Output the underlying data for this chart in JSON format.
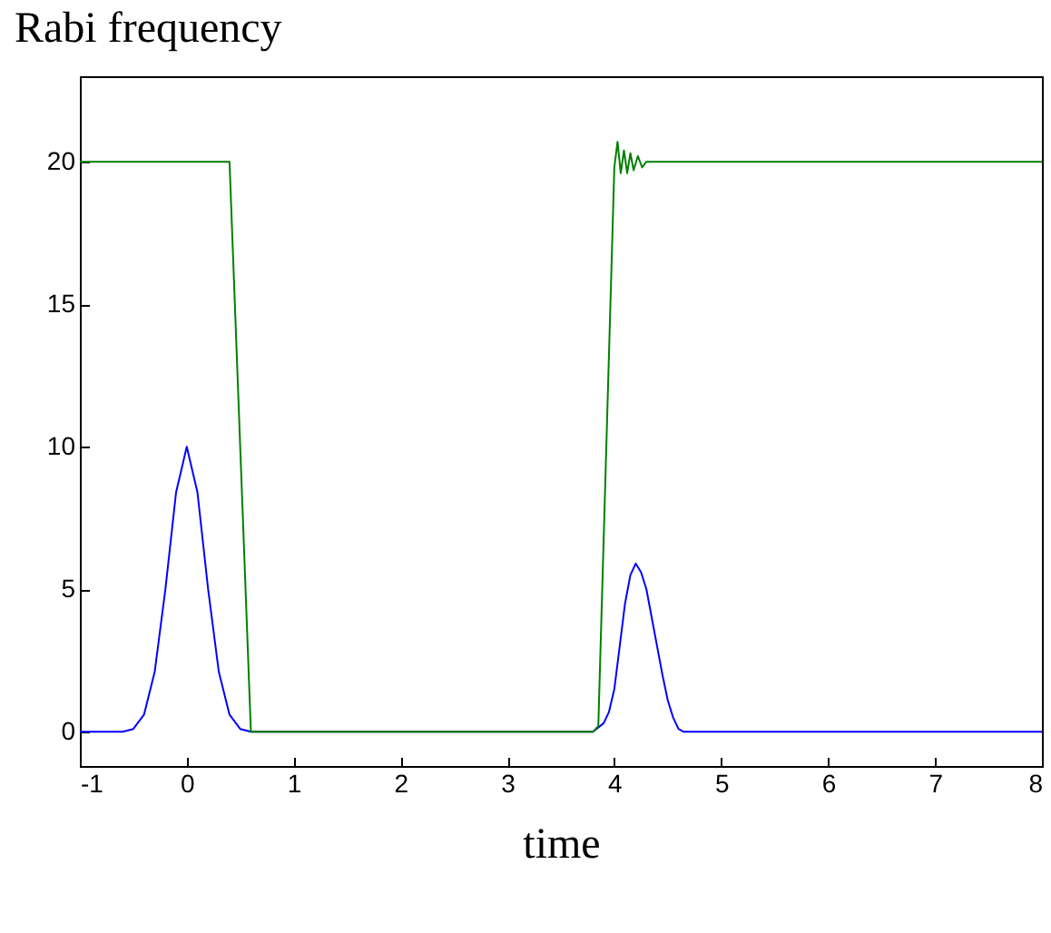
{
  "chart_data": {
    "type": "line",
    "title": "Rabi frequency",
    "xlabel": "time",
    "xlim": [
      -1,
      8
    ],
    "xticks": [
      -1,
      0,
      1,
      2,
      3,
      4,
      5,
      6,
      7,
      8
    ],
    "ylim": [
      -1.2,
      23
    ],
    "yticks": [
      0,
      5,
      10,
      15,
      20
    ],
    "grid": false,
    "series": [
      {
        "color": "#0000ff",
        "x": [
          -1,
          -0.6,
          -0.5,
          -0.4,
          -0.3,
          -0.2,
          -0.1,
          0,
          0.1,
          0.2,
          0.3,
          0.4,
          0.5,
          0.6,
          3.8,
          3.9,
          3.95,
          4.0,
          4.05,
          4.1,
          4.15,
          4.2,
          4.25,
          4.3,
          4.35,
          4.4,
          4.45,
          4.5,
          4.55,
          4.6,
          4.65,
          8
        ],
        "values": [
          0,
          0,
          0.1,
          0.6,
          2.1,
          5,
          8.4,
          10,
          8.4,
          5,
          2.1,
          0.6,
          0.1,
          0,
          0,
          0.3,
          0.7,
          1.5,
          3,
          4.5,
          5.5,
          5.9,
          5.6,
          5,
          4,
          3,
          2,
          1.1,
          0.5,
          0.1,
          0,
          0
        ]
      },
      {
        "color": "#008000",
        "x": [
          -1,
          0.4,
          0.6,
          3.8,
          3.85,
          4.0,
          4.03,
          4.06,
          4.09,
          4.12,
          4.15,
          4.18,
          4.22,
          4.26,
          4.3,
          8
        ],
        "values": [
          20,
          20,
          0,
          0,
          0.2,
          19.8,
          20.7,
          19.6,
          20.4,
          19.6,
          20.3,
          19.7,
          20.2,
          19.8,
          20,
          20
        ]
      }
    ]
  }
}
